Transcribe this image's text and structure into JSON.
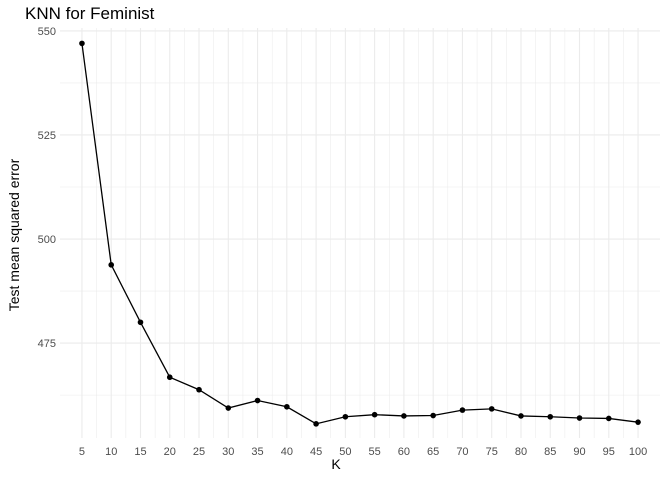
{
  "chart_data": {
    "type": "line",
    "title": "KNN for Feminist",
    "xlabel": "K",
    "ylabel": "Test mean squared error",
    "x": [
      5,
      10,
      15,
      20,
      25,
      30,
      35,
      40,
      45,
      50,
      55,
      60,
      65,
      70,
      75,
      80,
      85,
      90,
      95,
      100
    ],
    "series": [
      {
        "values": [
          547.0,
          493.8,
          480.0,
          466.8,
          463.8,
          459.4,
          461.2,
          459.7,
          455.6,
          457.3,
          457.8,
          457.5,
          457.6,
          458.9,
          459.2,
          457.5,
          457.3,
          457.0,
          456.9,
          456.0
        ]
      }
    ],
    "xlim": [
      1.25,
      103.75
    ],
    "ylim": [
      452.2,
      550.7
    ],
    "yticks": [
      475,
      500,
      525,
      550
    ],
    "grid": true,
    "line_color": "#000000",
    "grid_color": "#ebebeb"
  }
}
